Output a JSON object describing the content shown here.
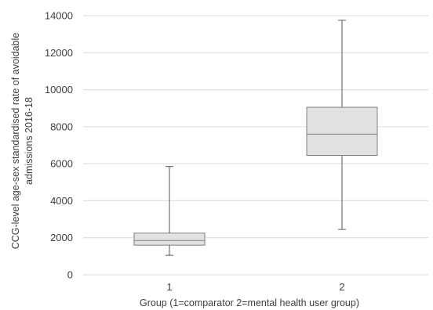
{
  "chart_data": {
    "type": "box",
    "categories": [
      "1",
      "2"
    ],
    "boxes": [
      {
        "category": "1",
        "min": 1050,
        "q1": 1600,
        "median": 1850,
        "q3": 2250,
        "max": 5850
      },
      {
        "category": "2",
        "min": 2450,
        "q1": 6450,
        "median": 7600,
        "q3": 9050,
        "max": 13750
      }
    ],
    "y_ticks": [
      "0",
      "2000",
      "4000",
      "6000",
      "8000",
      "10000",
      "12000",
      "14000"
    ],
    "xlabel": "Group (1=comparator 2=mental health user group)",
    "ylabel_line1": "CCG-level age-sex standardised rate of avoidable",
    "ylabel_line2": "admissions 2016-18",
    "ylim": [
      0,
      14000
    ],
    "grid": true,
    "colors": {
      "box_fill": "#e2e2e2",
      "box_stroke": "#7f7f7f",
      "grid": "#d9d9d9",
      "whisker": "#595959"
    }
  }
}
